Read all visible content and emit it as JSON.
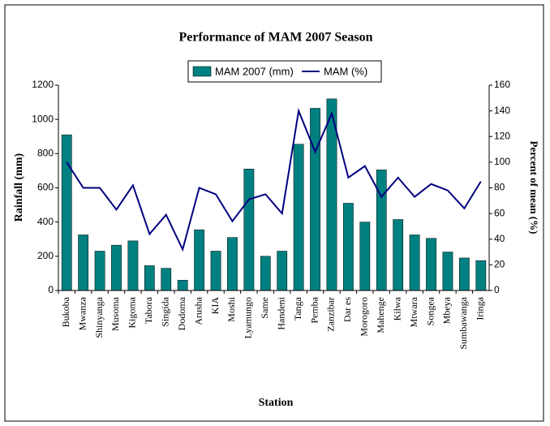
{
  "chart_data": {
    "type": "bar",
    "title": "Performance of MAM 2007 Season",
    "x_label": "Station",
    "y_label": "Rainfall (mm)",
    "y2_label": "Percent of mean (%)",
    "categories": [
      "Bukoba",
      "Mwanza",
      "Shinyanga",
      "Musoma",
      "Kigoma",
      "Tabora",
      "Singida",
      "Dodoma",
      "Arusha",
      "KIA",
      "Moshi",
      "Lyamungo",
      "Same",
      "Handeni",
      "Tanga",
      "Pemba",
      "Zanzibar",
      "Dar es",
      "Morogoro",
      "Mahenge",
      "Kilwa",
      "Mtwara",
      "Songea",
      "Mbeya",
      "Sumbawanga",
      "Iringa"
    ],
    "series": [
      {
        "name": "MAM 2007 (mm)",
        "type": "bar",
        "axis": "y",
        "color": "#008080",
        "values": [
          910,
          325,
          230,
          265,
          290,
          145,
          130,
          60,
          355,
          230,
          310,
          710,
          200,
          230,
          855,
          1065,
          1120,
          510,
          400,
          705,
          415,
          325,
          305,
          225,
          190,
          175
        ]
      },
      {
        "name": "MAM (%)",
        "type": "line",
        "axis": "y2",
        "color": "#000080",
        "values": [
          100,
          80,
          80,
          63,
          82,
          44,
          59,
          32,
          80,
          75,
          54,
          71,
          75,
          60,
          140,
          108,
          138,
          88,
          97,
          73,
          88,
          73,
          83,
          78,
          64,
          85
        ]
      }
    ],
    "ylim": [
      0,
      1200
    ],
    "yticks": [
      0,
      200,
      400,
      600,
      800,
      1000,
      1200
    ],
    "y2lim": [
      0,
      160
    ],
    "y2ticks": [
      0,
      20,
      40,
      60,
      80,
      100,
      120,
      140,
      160
    ],
    "grid": false,
    "legend": "top"
  }
}
